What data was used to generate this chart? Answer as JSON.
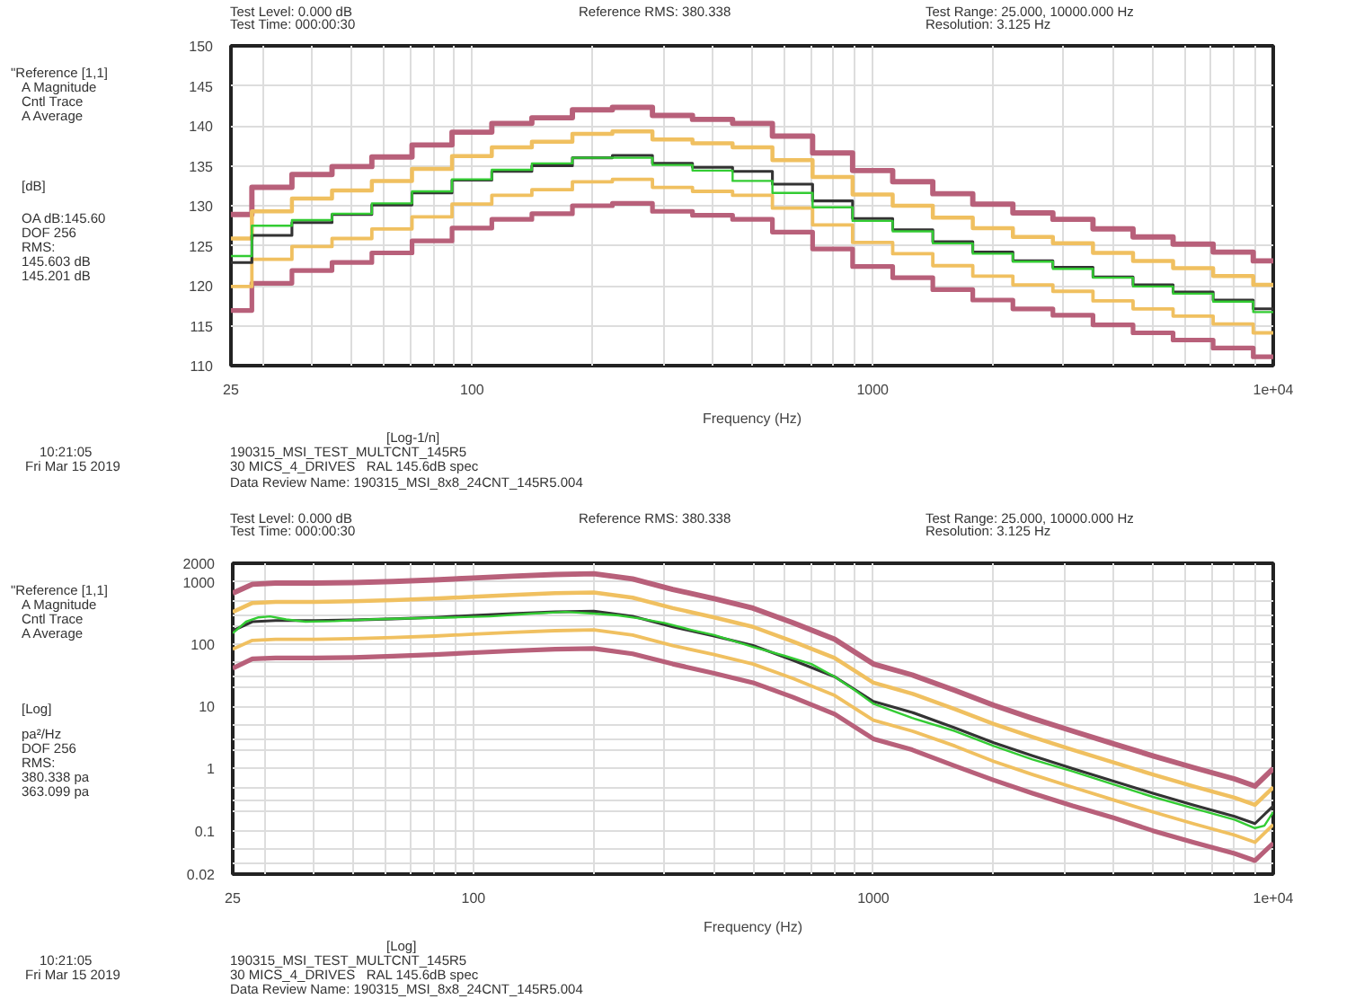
{
  "chart_data": [
    {
      "type": "step",
      "xlabel": "Frequency (Hz)",
      "log": "x",
      "grid": true,
      "x": [
        25,
        28.2,
        35.5,
        44.7,
        56.2,
        70.8,
        89.1,
        112,
        141,
        178,
        224,
        282,
        355,
        447,
        562,
        708,
        891,
        1122,
        1413,
        1778,
        2239,
        2818,
        3548,
        4467,
        5623,
        7079,
        8913,
        10000
      ],
      "series": [
        {
          "color": "#b8607a",
          "values": [
            128.9,
            132.3,
            133.9,
            134.9,
            136.1,
            137.6,
            139.2,
            140.3,
            141.0,
            142.0,
            142.3,
            141.3,
            140.8,
            140.3,
            138.7,
            136.6,
            134.4,
            133.0,
            131.5,
            130.2,
            129.1,
            128.3,
            127.1,
            126.1,
            125.2,
            124.2,
            123.1,
            123.1
          ]
        },
        {
          "color": "#b8607a",
          "values": [
            116.9,
            120.3,
            121.9,
            122.9,
            124.1,
            125.6,
            127.2,
            128.3,
            129.0,
            130.0,
            130.3,
            129.3,
            128.8,
            128.3,
            126.7,
            124.6,
            122.4,
            121.0,
            119.5,
            118.2,
            117.1,
            116.3,
            115.1,
            114.1,
            113.2,
            112.2,
            111.1,
            111.1
          ]
        },
        {
          "color": "#f0c060",
          "values": [
            125.9,
            129.3,
            130.9,
            131.9,
            133.1,
            134.6,
            136.2,
            137.3,
            138.0,
            139.0,
            139.3,
            138.3,
            137.8,
            137.3,
            135.7,
            133.6,
            131.4,
            130.0,
            128.5,
            127.2,
            126.1,
            125.3,
            124.1,
            123.1,
            122.2,
            121.2,
            120.1,
            120.1
          ]
        },
        {
          "color": "#f0c060",
          "values": [
            119.9,
            123.3,
            124.9,
            125.9,
            127.1,
            128.6,
            130.2,
            131.3,
            132.0,
            133.0,
            133.3,
            132.3,
            131.8,
            131.3,
            129.7,
            127.6,
            125.4,
            124.0,
            122.5,
            121.2,
            120.1,
            119.3,
            118.1,
            117.1,
            116.2,
            115.2,
            114.1,
            114.1
          ]
        },
        {
          "color": "#333333",
          "values": [
            122.9,
            126.3,
            127.9,
            128.9,
            130.1,
            131.6,
            133.2,
            134.3,
            135.0,
            136.0,
            136.3,
            135.3,
            134.8,
            134.3,
            132.7,
            130.6,
            128.4,
            127.0,
            125.5,
            124.2,
            123.1,
            122.3,
            121.1,
            120.1,
            119.2,
            118.2,
            117.1,
            117.1
          ]
        },
        {
          "color": "#33cc33",
          "values": [
            123.7,
            127.5,
            128.2,
            129.0,
            130.3,
            131.8,
            133.3,
            134.5,
            135.3,
            136.0,
            136.0,
            135.1,
            134.4,
            133.1,
            131.6,
            129.8,
            128.1,
            126.8,
            125.3,
            124.0,
            123.0,
            122.1,
            121.0,
            119.9,
            119.0,
            118.0,
            116.7,
            116.7
          ]
        }
      ],
      "xlim": [
        25,
        10000
      ],
      "xticks": [
        25,
        {
          "value": 30,
          "label": null
        },
        {
          "value": 40,
          "label": null
        },
        {
          "value": 50,
          "label": null
        },
        {
          "value": 60,
          "label": null
        },
        {
          "value": 70,
          "label": null
        },
        {
          "value": 80,
          "label": null
        },
        {
          "value": 90,
          "label": null
        },
        100,
        {
          "value": 200,
          "label": null
        },
        {
          "value": 300,
          "label": null
        },
        {
          "value": 400,
          "label": null
        },
        {
          "value": 500,
          "label": null
        },
        {
          "value": 600,
          "label": null
        },
        {
          "value": 700,
          "label": null
        },
        {
          "value": 800,
          "label": null
        },
        {
          "value": 900,
          "label": null
        },
        1000,
        {
          "value": 2000,
          "label": null
        },
        {
          "value": 3000,
          "label": null
        },
        {
          "value": 4000,
          "label": null
        },
        {
          "value": 5000,
          "label": null
        },
        {
          "value": 6000,
          "label": null
        },
        {
          "value": 7000,
          "label": null
        },
        {
          "value": 8000,
          "label": null
        },
        {
          "value": 9000,
          "label": null
        },
        {
          "value": 10000,
          "label": "1e+04"
        }
      ],
      "ylim": [
        110,
        150
      ],
      "yticks": [
        110,
        115,
        120,
        125,
        130,
        135,
        140,
        145,
        150
      ],
      "annotations": [
        "Test Level: 0.000 dB",
        "Test Time: 000:00:30",
        "Reference RMS: 380.338",
        "Test Range: 25.000, 10000.000 Hz",
        "Resolution: 3.125 Hz",
        "\"Reference [1,1]",
        "A Magnitude",
        "Cntl Trace",
        "A Average",
        "[dB]",
        "OA dB:145.60",
        "DOF 256",
        "RMS:",
        "145.603 dB",
        "145.201 dB",
        "[Log-1/n]",
        "10:21:05",
        "Fri Mar 15 2019",
        "190315_MSI_TEST_MULTCNT_145R5",
        "30 MICS_4_DRIVES   RAL 145.6dB spec",
        "Data Review Name: 190315_MSI_8x8_24CNT_145R5.004"
      ]
    },
    {
      "type": "line",
      "xlabel": "Frequency (Hz)",
      "log": "xy",
      "grid": true,
      "series": [
        {
          "color": "#b8607a",
          "x": [
            25,
            28,
            32,
            40,
            50,
            63,
            80,
            100,
            125,
            160,
            200,
            250,
            315,
            400,
            500,
            630,
            800,
            1000,
            1250,
            1600,
            2000,
            2500,
            3150,
            4000,
            5000,
            6300,
            8000,
            9000,
            10000
          ],
          "values": [
            660,
            920,
            960,
            960,
            980,
            1020,
            1080,
            1160,
            1240,
            1320,
            1360,
            1120,
            760,
            540,
            380,
            220,
            120,
            48,
            32,
            18,
            10.4,
            6.4,
            4.0,
            2.48,
            1.6,
            1.04,
            0.68,
            0.52,
            1.0
          ]
        },
        {
          "color": "#b8607a",
          "x": [
            25,
            28,
            32,
            40,
            50,
            63,
            80,
            100,
            125,
            160,
            200,
            250,
            315,
            400,
            500,
            630,
            800,
            1000,
            1250,
            1600,
            2000,
            2500,
            3150,
            4000,
            5000,
            6300,
            8000,
            9000,
            10000
          ],
          "values": [
            41,
            58,
            60,
            60,
            61,
            64,
            68,
            73,
            78,
            83,
            85,
            70,
            48,
            34,
            24,
            14,
            7.5,
            3,
            2,
            1.1,
            0.65,
            0.4,
            0.25,
            0.16,
            0.1,
            0.065,
            0.043,
            0.033,
            0.063
          ]
        },
        {
          "color": "#f0c060",
          "x": [
            25,
            28,
            32,
            40,
            50,
            63,
            80,
            100,
            125,
            160,
            200,
            250,
            315,
            400,
            500,
            630,
            800,
            1000,
            1250,
            1600,
            2000,
            2500,
            3150,
            4000,
            5000,
            6300,
            8000,
            9000,
            10000
          ],
          "values": [
            330,
            460,
            480,
            480,
            490,
            510,
            540,
            580,
            620,
            660,
            680,
            560,
            380,
            270,
            190,
            110,
            60,
            24,
            16,
            9,
            5.2,
            3.2,
            2.0,
            1.24,
            0.8,
            0.52,
            0.34,
            0.26,
            0.5
          ]
        },
        {
          "color": "#f0c060",
          "x": [
            25,
            28,
            32,
            40,
            50,
            63,
            80,
            100,
            125,
            160,
            200,
            250,
            315,
            400,
            500,
            630,
            800,
            1000,
            1250,
            1600,
            2000,
            2500,
            3150,
            4000,
            5000,
            6300,
            8000,
            9000,
            10000
          ],
          "values": [
            83,
            115,
            120,
            120,
            123,
            128,
            135,
            145,
            155,
            165,
            170,
            140,
            95,
            68,
            48,
            28,
            15,
            6,
            4,
            2.3,
            1.3,
            0.8,
            0.5,
            0.31,
            0.2,
            0.13,
            0.085,
            0.065,
            0.125
          ]
        },
        {
          "color": "#333333",
          "x": [
            25,
            28,
            32,
            40,
            50,
            63,
            80,
            100,
            125,
            160,
            200,
            250,
            315,
            400,
            500,
            630,
            800,
            1000,
            1250,
            1600,
            2000,
            2500,
            3150,
            4000,
            5000,
            6300,
            8000,
            9000,
            10000
          ],
          "values": [
            165,
            230,
            240,
            240,
            245,
            255,
            270,
            290,
            310,
            330,
            340,
            280,
            190,
            135,
            95,
            55,
            30,
            12,
            8,
            4.5,
            2.6,
            1.6,
            1.0,
            0.62,
            0.4,
            0.26,
            0.17,
            0.13,
            0.25
          ]
        },
        {
          "color": "#33cc33",
          "x": [
            25,
            27,
            29,
            31,
            34,
            38,
            45,
            55,
            70,
            90,
            110,
            140,
            170,
            200,
            230,
            260,
            300,
            350,
            400,
            500,
            600,
            700,
            800,
            900,
            1000,
            1250,
            1600,
            2000,
            2500,
            3150,
            4000,
            5000,
            6300,
            8000,
            9000,
            9500,
            10000
          ],
          "values": [
            150,
            230,
            270,
            280,
            250,
            230,
            235,
            250,
            260,
            270,
            280,
            310,
            330,
            310,
            290,
            260,
            220,
            170,
            140,
            90,
            65,
            48,
            30,
            18,
            11,
            6.5,
            4.0,
            2.3,
            1.4,
            0.9,
            0.55,
            0.35,
            0.23,
            0.15,
            0.11,
            0.12,
            0.2
          ]
        }
      ],
      "xlim": [
        25,
        10000
      ],
      "xticks": [
        25,
        {
          "value": 30,
          "label": null
        },
        {
          "value": 40,
          "label": null
        },
        {
          "value": 50,
          "label": null
        },
        {
          "value": 60,
          "label": null
        },
        {
          "value": 70,
          "label": null
        },
        {
          "value": 80,
          "label": null
        },
        {
          "value": 90,
          "label": null
        },
        100,
        {
          "value": 200,
          "label": null
        },
        {
          "value": 300,
          "label": null
        },
        {
          "value": 400,
          "label": null
        },
        {
          "value": 500,
          "label": null
        },
        {
          "value": 600,
          "label": null
        },
        {
          "value": 700,
          "label": null
        },
        {
          "value": 800,
          "label": null
        },
        {
          "value": 900,
          "label": null
        },
        1000,
        {
          "value": 2000,
          "label": null
        },
        {
          "value": 3000,
          "label": null
        },
        {
          "value": 4000,
          "label": null
        },
        {
          "value": 5000,
          "label": null
        },
        {
          "value": 6000,
          "label": null
        },
        {
          "value": 7000,
          "label": null
        },
        {
          "value": 8000,
          "label": null
        },
        {
          "value": 9000,
          "label": null
        },
        {
          "value": 10000,
          "label": "1e+04"
        }
      ],
      "ylim": [
        0.02,
        2000
      ],
      "yticks": [
        0.02,
        {
          "value": 0.03,
          "label": null
        },
        {
          "value": 0.05,
          "label": null
        },
        0.1,
        {
          "value": 0.2,
          "label": null
        },
        {
          "value": 0.3,
          "label": null
        },
        {
          "value": 0.5,
          "label": null
        },
        1,
        {
          "value": 2,
          "label": null
        },
        {
          "value": 3,
          "label": null
        },
        {
          "value": 5,
          "label": null
        },
        10,
        {
          "value": 20,
          "label": null
        },
        {
          "value": 30,
          "label": null
        },
        {
          "value": 50,
          "label": null
        },
        100,
        {
          "value": 200,
          "label": null
        },
        {
          "value": 300,
          "label": null
        },
        {
          "value": 500,
          "label": null
        },
        1000,
        2000
      ],
      "annotations": [
        "Test Level: 0.000 dB",
        "Test Time: 000:00:30",
        "Reference RMS: 380.338",
        "Test Range: 25.000, 10000.000 Hz",
        "Resolution: 3.125 Hz",
        "\"Reference [1,1]",
        "A Magnitude",
        "Cntl Trace",
        "A Average",
        "[Log]",
        "pa²/Hz",
        "DOF 256",
        "RMS:",
        "380.338 pa",
        "363.099 pa",
        "[Log]",
        "10:21:05",
        "Fri Mar 15 2019",
        "190315_MSI_TEST_MULTCNT_145R5",
        "30 MICS_4_DRIVES   RAL 145.6dB spec",
        "Data Review Name: 190315_MSI_8x8_24CNT_145R5.004"
      ]
    }
  ]
}
